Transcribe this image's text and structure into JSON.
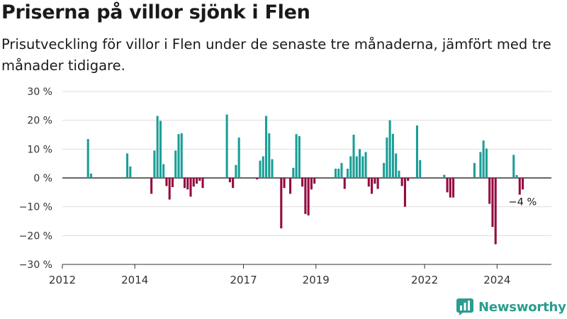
{
  "title": "Priserna på villor sjönk i Flen",
  "subtitle": "Prisutveckling för villor i Flen under de senaste tre månaderna, jämfört med tre månader tidigare.",
  "brand": "Newsworthy",
  "colors": {
    "positive": "#1a9e97",
    "negative": "#940a40",
    "grid": "#dddddd",
    "axis": "#333333",
    "brand": "#2a9d8f"
  },
  "chart_data": {
    "type": "bar",
    "x_unit": "month",
    "y_unit": "%",
    "ylim": [
      -30,
      30
    ],
    "yticks": [
      30,
      20,
      10,
      0,
      -10,
      -20,
      -30
    ],
    "ytick_labels": [
      "30 %",
      "20 %",
      "10 %",
      "0 %",
      "−10 %",
      "−20 %",
      "−30 %"
    ],
    "xlim": [
      "2012-01",
      "2025-07"
    ],
    "xticks": [
      "2012-01",
      "2014-01",
      "2017-01",
      "2019-01",
      "2022-01",
      "2024-01"
    ],
    "xtick_labels": [
      "2012",
      "2014",
      "2017",
      "2019",
      "2022",
      "2024"
    ],
    "grid": true,
    "annotation": {
      "text": "−4 %",
      "month": "2024-09",
      "value": -4
    },
    "series": [
      {
        "values": [
          [
            "2012-09",
            13.5
          ],
          [
            "2012-10",
            1.5
          ],
          [
            "2013-10",
            8.5
          ],
          [
            "2013-11",
            4
          ],
          [
            "2014-06",
            -5.5
          ],
          [
            "2014-07",
            9.5
          ],
          [
            "2014-08",
            21.5
          ],
          [
            "2014-09",
            19.8
          ],
          [
            "2014-10",
            4.8
          ],
          [
            "2014-11",
            -2.8
          ],
          [
            "2014-12",
            -7.5
          ],
          [
            "2015-01",
            -3.2
          ],
          [
            "2015-02",
            9.5
          ],
          [
            "2015-03",
            15.2
          ],
          [
            "2015-04",
            15.5
          ],
          [
            "2015-05",
            -3.5
          ],
          [
            "2015-06",
            -4
          ],
          [
            "2015-07",
            -6.5
          ],
          [
            "2015-08",
            -3
          ],
          [
            "2015-09",
            -2
          ],
          [
            "2015-10",
            -1
          ],
          [
            "2015-11",
            -3.5
          ],
          [
            "2016-07",
            22
          ],
          [
            "2016-08",
            -1.5
          ],
          [
            "2016-09",
            -3.5
          ],
          [
            "2016-10",
            4.5
          ],
          [
            "2016-11",
            14
          ],
          [
            "2017-05",
            -0.5
          ],
          [
            "2017-06",
            6
          ],
          [
            "2017-07",
            7.5
          ],
          [
            "2017-08",
            21.5
          ],
          [
            "2017-09",
            15.5
          ],
          [
            "2017-10",
            6.5
          ],
          [
            "2018-01",
            -17.5
          ],
          [
            "2018-02",
            -3.5
          ],
          [
            "2018-04",
            -5.5
          ],
          [
            "2018-05",
            3.5
          ],
          [
            "2018-06",
            15.2
          ],
          [
            "2018-07",
            14.5
          ],
          [
            "2018-08",
            -3
          ],
          [
            "2018-09",
            -12.5
          ],
          [
            "2018-10",
            -13
          ],
          [
            "2018-11",
            -4
          ],
          [
            "2018-12",
            -2
          ],
          [
            "2019-07",
            3.2
          ],
          [
            "2019-08",
            3.2
          ],
          [
            "2019-09",
            5.2
          ],
          [
            "2019-10",
            -3.8
          ],
          [
            "2019-11",
            3.2
          ],
          [
            "2019-12",
            7.5
          ],
          [
            "2020-01",
            15
          ],
          [
            "2020-02",
            7.5
          ],
          [
            "2020-03",
            10
          ],
          [
            "2020-04",
            7.5
          ],
          [
            "2020-05",
            9
          ],
          [
            "2020-06",
            -3
          ],
          [
            "2020-07",
            -5.5
          ],
          [
            "2020-08",
            -2
          ],
          [
            "2020-09",
            -3.8
          ],
          [
            "2020-11",
            5.2
          ],
          [
            "2020-12",
            14
          ],
          [
            "2021-01",
            20
          ],
          [
            "2021-02",
            15.3
          ],
          [
            "2021-03",
            8.5
          ],
          [
            "2021-04",
            2.5
          ],
          [
            "2021-05",
            -2.8
          ],
          [
            "2021-06",
            -10
          ],
          [
            "2021-07",
            -1
          ],
          [
            "2021-10",
            18.2
          ],
          [
            "2021-11",
            6.2
          ],
          [
            "2022-07",
            1.1
          ],
          [
            "2022-08",
            -5
          ],
          [
            "2022-09",
            -6.8
          ],
          [
            "2022-10",
            -6.8
          ],
          [
            "2023-05",
            5.2
          ],
          [
            "2023-07",
            9
          ],
          [
            "2023-08",
            13
          ],
          [
            "2023-09",
            10.2
          ],
          [
            "2023-10",
            -9
          ],
          [
            "2023-11",
            -17
          ],
          [
            "2023-12",
            -23
          ],
          [
            "2024-06",
            8
          ],
          [
            "2024-07",
            1
          ],
          [
            "2024-08",
            -5.8
          ],
          [
            "2024-09",
            -4
          ]
        ]
      }
    ]
  }
}
